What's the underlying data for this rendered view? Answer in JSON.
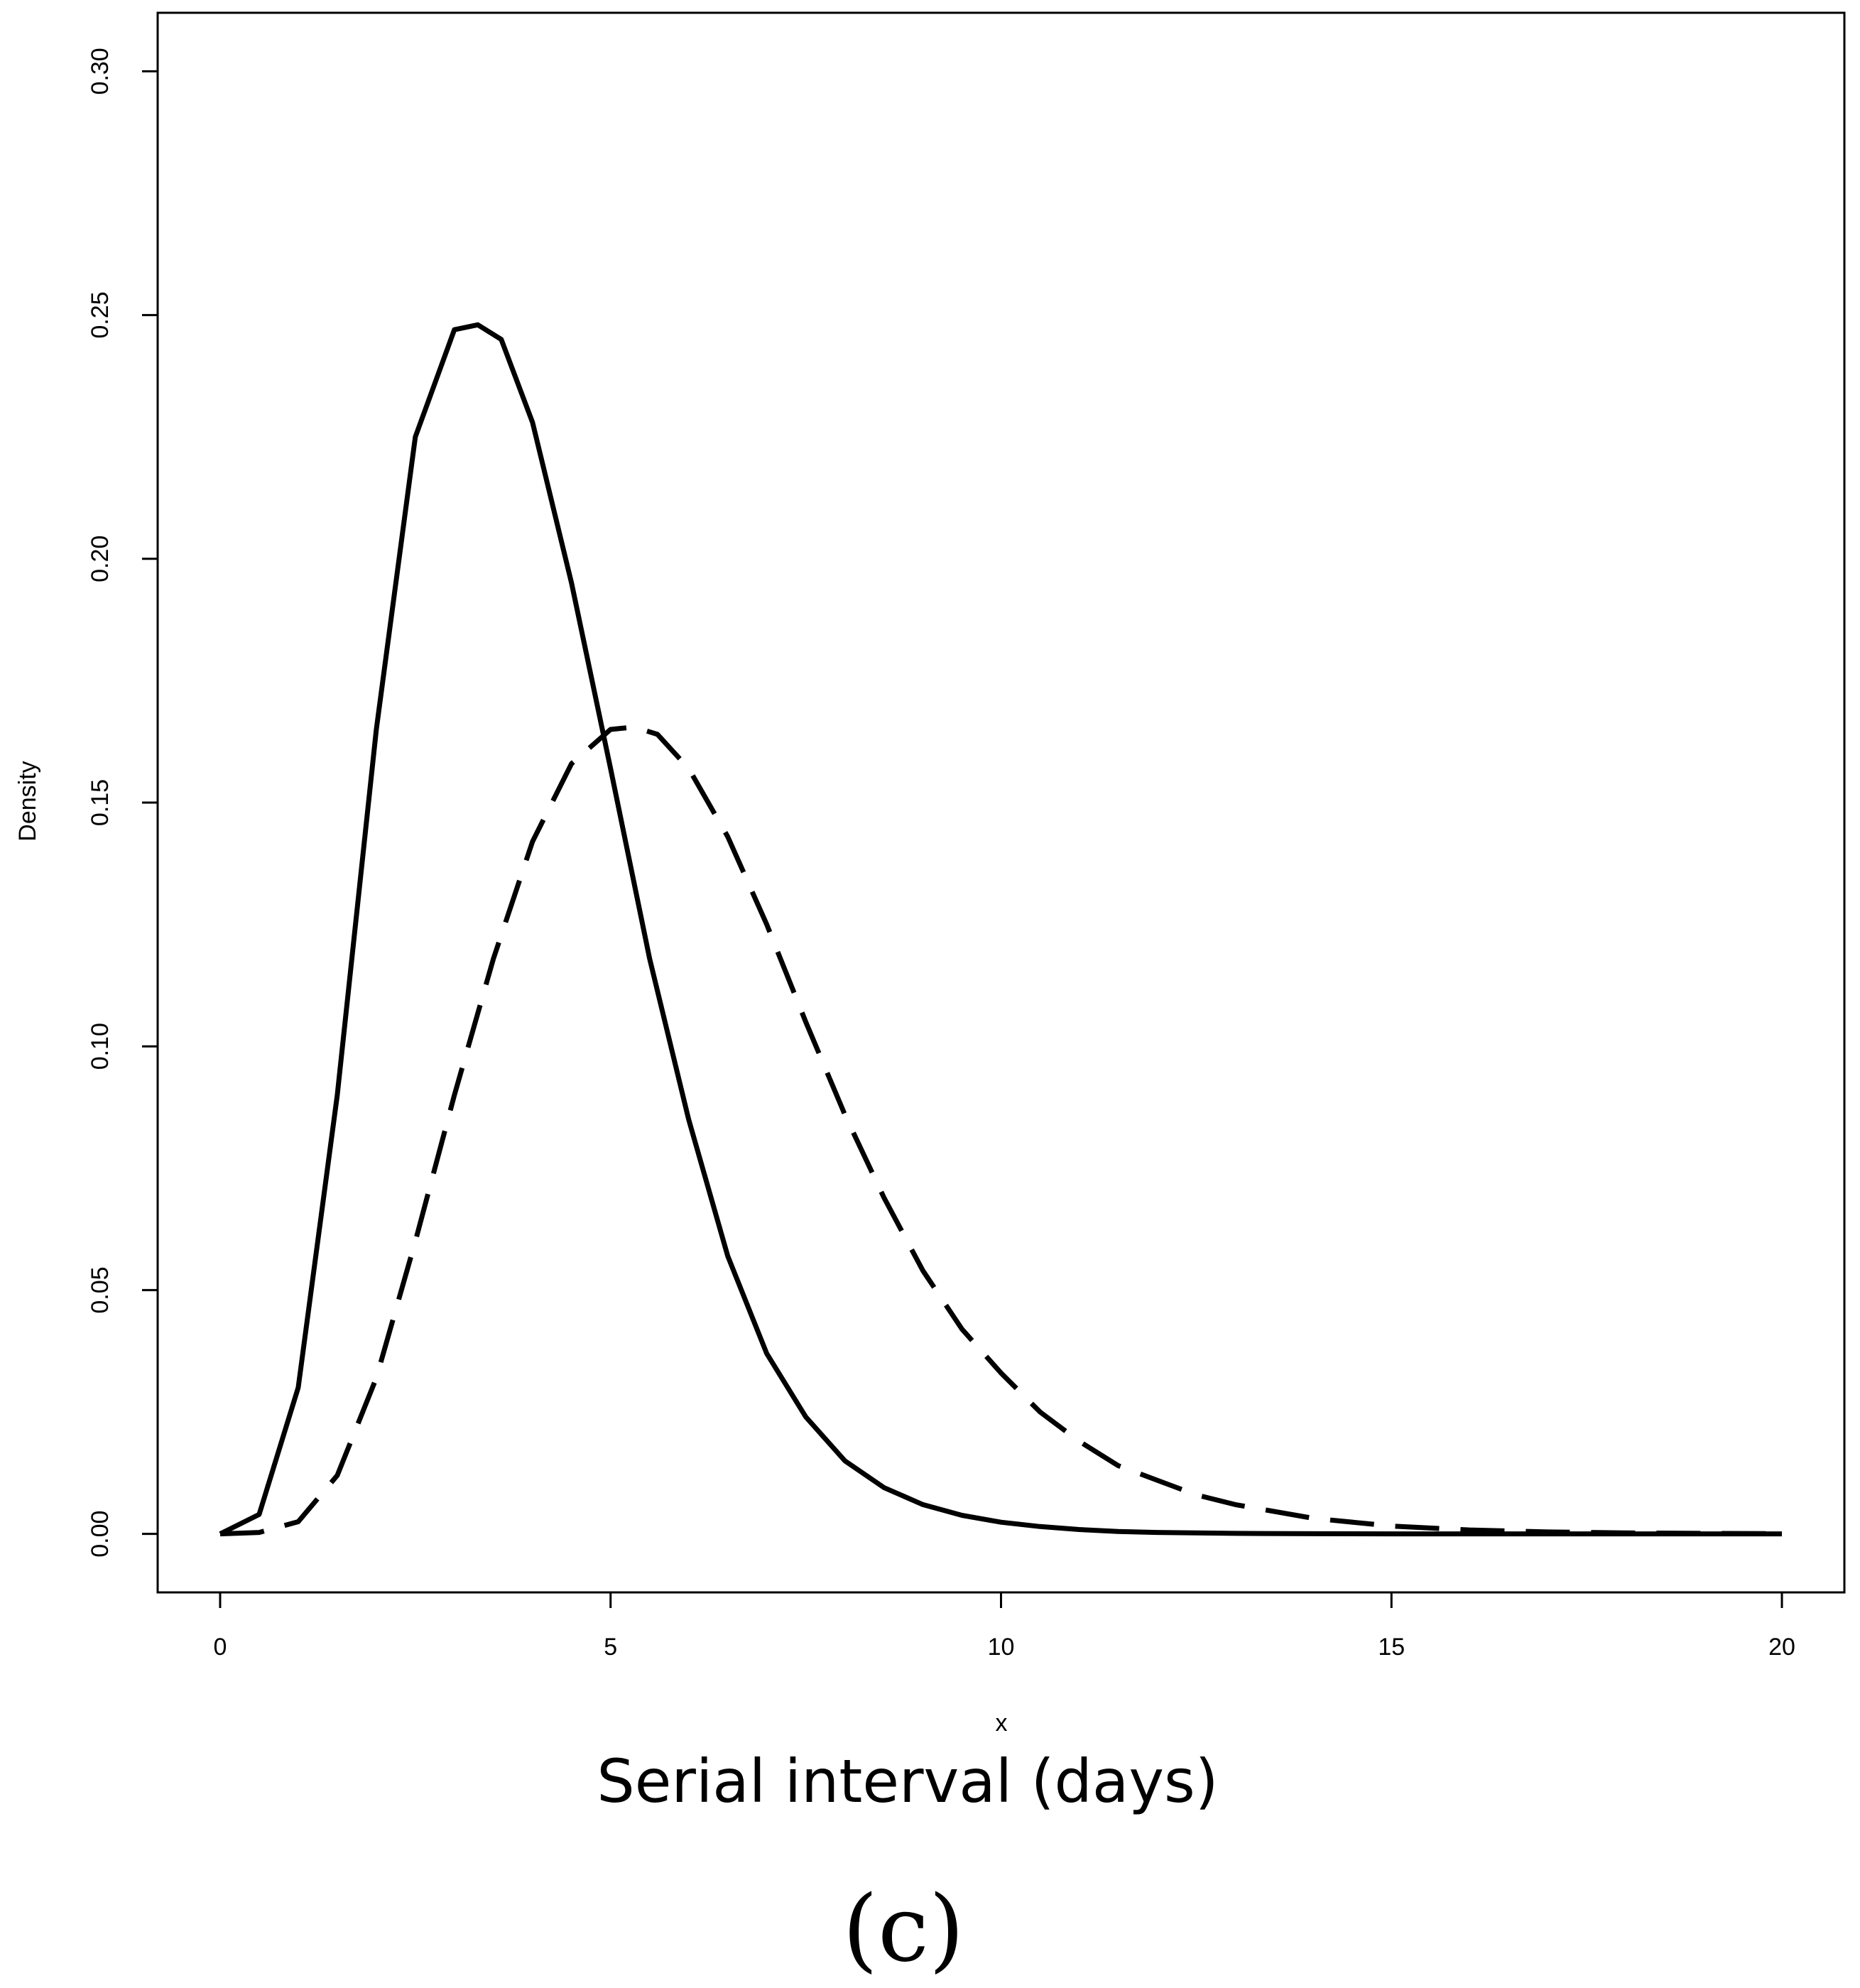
{
  "chart_data": {
    "type": "line",
    "title": "",
    "xlabel": "x",
    "ylabel": "Density",
    "caption": "Serial interval (days)",
    "panel_label": "(c)",
    "xlim": [
      -0.8,
      20.8
    ],
    "ylim": [
      -0.012,
      0.312
    ],
    "xticks": [
      0,
      5,
      10,
      15,
      20
    ],
    "yticks": [
      0.0,
      0.05,
      0.1,
      0.15,
      0.2,
      0.25,
      0.3
    ],
    "xtick_labels": [
      "0",
      "5",
      "10",
      "15",
      "20"
    ],
    "ytick_labels": [
      "0.00",
      "0.05",
      "0.10",
      "0.15",
      "0.20",
      "0.25",
      "0.30"
    ],
    "grid": false,
    "series": [
      {
        "name": "solid",
        "style": "solid",
        "color": "#000000",
        "x": [
          0,
          0.5,
          1,
          1.5,
          2,
          2.5,
          3,
          3.3,
          3.6,
          4,
          4.5,
          5,
          5.5,
          6,
          6.5,
          7,
          7.5,
          8,
          8.5,
          9,
          9.5,
          10,
          10.5,
          11,
          11.5,
          12,
          13,
          14,
          15,
          16,
          17,
          18,
          19,
          20
        ],
        "y": [
          0.0,
          0.004,
          0.03,
          0.09,
          0.165,
          0.225,
          0.247,
          0.248,
          0.245,
          0.228,
          0.195,
          0.157,
          0.118,
          0.085,
          0.057,
          0.037,
          0.024,
          0.015,
          0.0095,
          0.006,
          0.0038,
          0.0024,
          0.0015,
          0.0009,
          0.0005,
          0.0003,
          0.0001,
          4e-05,
          1e-05,
          0,
          0,
          0,
          0,
          0
        ]
      },
      {
        "name": "dashed",
        "style": "dashed",
        "color": "#000000",
        "x": [
          0,
          0.5,
          1,
          1.5,
          2,
          2.5,
          3,
          3.5,
          4,
          4.5,
          5,
          5.3,
          5.6,
          6,
          6.5,
          7,
          7.5,
          8,
          8.5,
          9,
          9.5,
          10,
          10.5,
          11,
          11.5,
          12,
          12.5,
          13,
          14,
          15,
          16,
          17,
          18,
          19,
          20
        ],
        "y": [
          0.0,
          0.0003,
          0.0025,
          0.012,
          0.032,
          0.06,
          0.09,
          0.118,
          0.142,
          0.158,
          0.165,
          0.1655,
          0.164,
          0.157,
          0.143,
          0.125,
          0.105,
          0.086,
          0.069,
          0.054,
          0.042,
          0.033,
          0.025,
          0.019,
          0.014,
          0.011,
          0.008,
          0.006,
          0.0032,
          0.0016,
          0.0008,
          0.0004,
          0.0002,
          0.0001,
          4e-05
        ]
      }
    ]
  }
}
